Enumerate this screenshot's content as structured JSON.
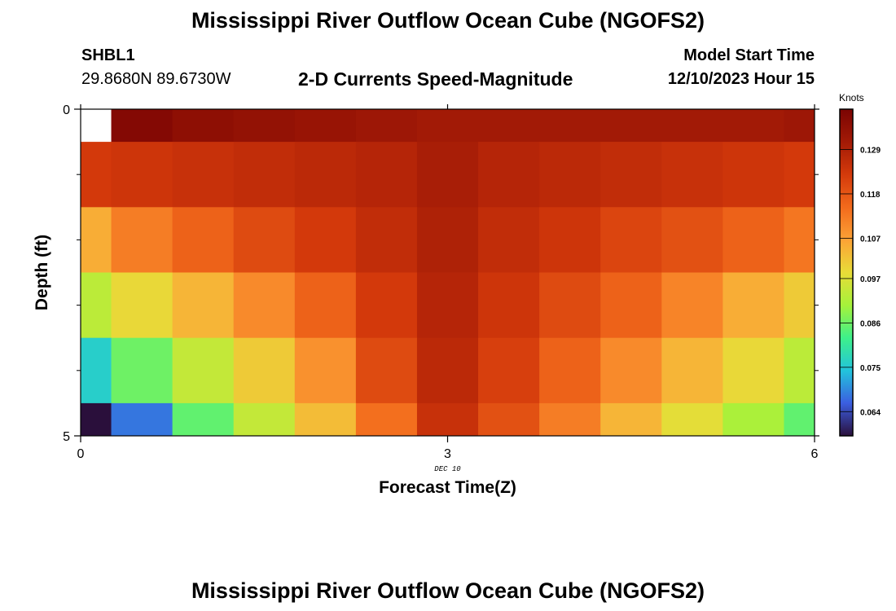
{
  "page": {
    "title_top": "Mississippi River Outflow Ocean Cube (NGOFS2)",
    "title_bottom": "Mississippi River Outflow Ocean Cube (NGOFS2)",
    "station_id": "SHBL1",
    "coordinates": "29.8680N  89.6730W",
    "subtitle": "2-D Currents Speed-Magnitude",
    "model_start_label": "Model Start Time",
    "model_start_value": "12/10/2023 Hour 15"
  },
  "chart_data": {
    "type": "heatmap",
    "title": "2-D Currents Speed-Magnitude",
    "xlabel": "Forecast Time(Z)",
    "ylabel": "Depth (ft)",
    "xlim": [
      0,
      6
    ],
    "ylim": [
      5,
      0
    ],
    "x_ticks": [
      "0",
      "3",
      "6"
    ],
    "y_ticks": [
      "0",
      "5"
    ],
    "x_sublabel": "DEC 10",
    "x_cell_edges": [
      0,
      0.25,
      0.75,
      1.25,
      1.75,
      2.25,
      2.75,
      3.25,
      3.75,
      4.25,
      4.75,
      5.25,
      5.75,
      6
    ],
    "y_cell_edges": [
      0,
      0.5,
      1.5,
      2.5,
      3.5,
      4.5,
      5
    ],
    "values": [
      [
        null,
        0.137,
        0.135,
        0.134,
        0.133,
        0.132,
        0.131,
        0.131,
        0.131,
        0.131,
        0.131,
        0.131,
        0.132
      ],
      [
        0.123,
        0.124,
        0.125,
        0.126,
        0.127,
        0.128,
        0.13,
        0.128,
        0.127,
        0.126,
        0.125,
        0.124,
        0.123
      ],
      [
        0.105,
        0.112,
        0.116,
        0.12,
        0.123,
        0.126,
        0.129,
        0.126,
        0.124,
        0.121,
        0.119,
        0.116,
        0.113
      ],
      [
        0.093,
        0.099,
        0.104,
        0.11,
        0.116,
        0.123,
        0.128,
        0.124,
        0.12,
        0.116,
        0.111,
        0.105,
        0.101
      ],
      [
        0.076,
        0.086,
        0.094,
        0.101,
        0.109,
        0.12,
        0.127,
        0.122,
        0.116,
        0.11,
        0.104,
        0.099,
        0.093
      ],
      [
        0.057,
        0.068,
        0.085,
        0.094,
        0.103,
        0.114,
        0.125,
        0.119,
        0.112,
        0.104,
        0.098,
        0.091,
        0.085
      ]
    ],
    "colorbar": {
      "title": "Knots",
      "range": [
        0.058,
        0.139
      ],
      "ticks": [
        0.064,
        0.075,
        0.086,
        0.097,
        0.107,
        0.118,
        0.129
      ],
      "tick_labels": [
        "0.064",
        "0.075",
        "0.086",
        "0.097",
        "0.107",
        "0.118",
        "0.129"
      ],
      "colors": [
        "#2a0f3b",
        "#3b5ee0",
        "#22c4dc",
        "#3ef08a",
        "#a6f23a",
        "#e8dc38",
        "#fca236",
        "#f26a1c",
        "#d43a0b",
        "#a31a06",
        "#7a0403"
      ]
    },
    "missing_color": "#ffffff"
  }
}
